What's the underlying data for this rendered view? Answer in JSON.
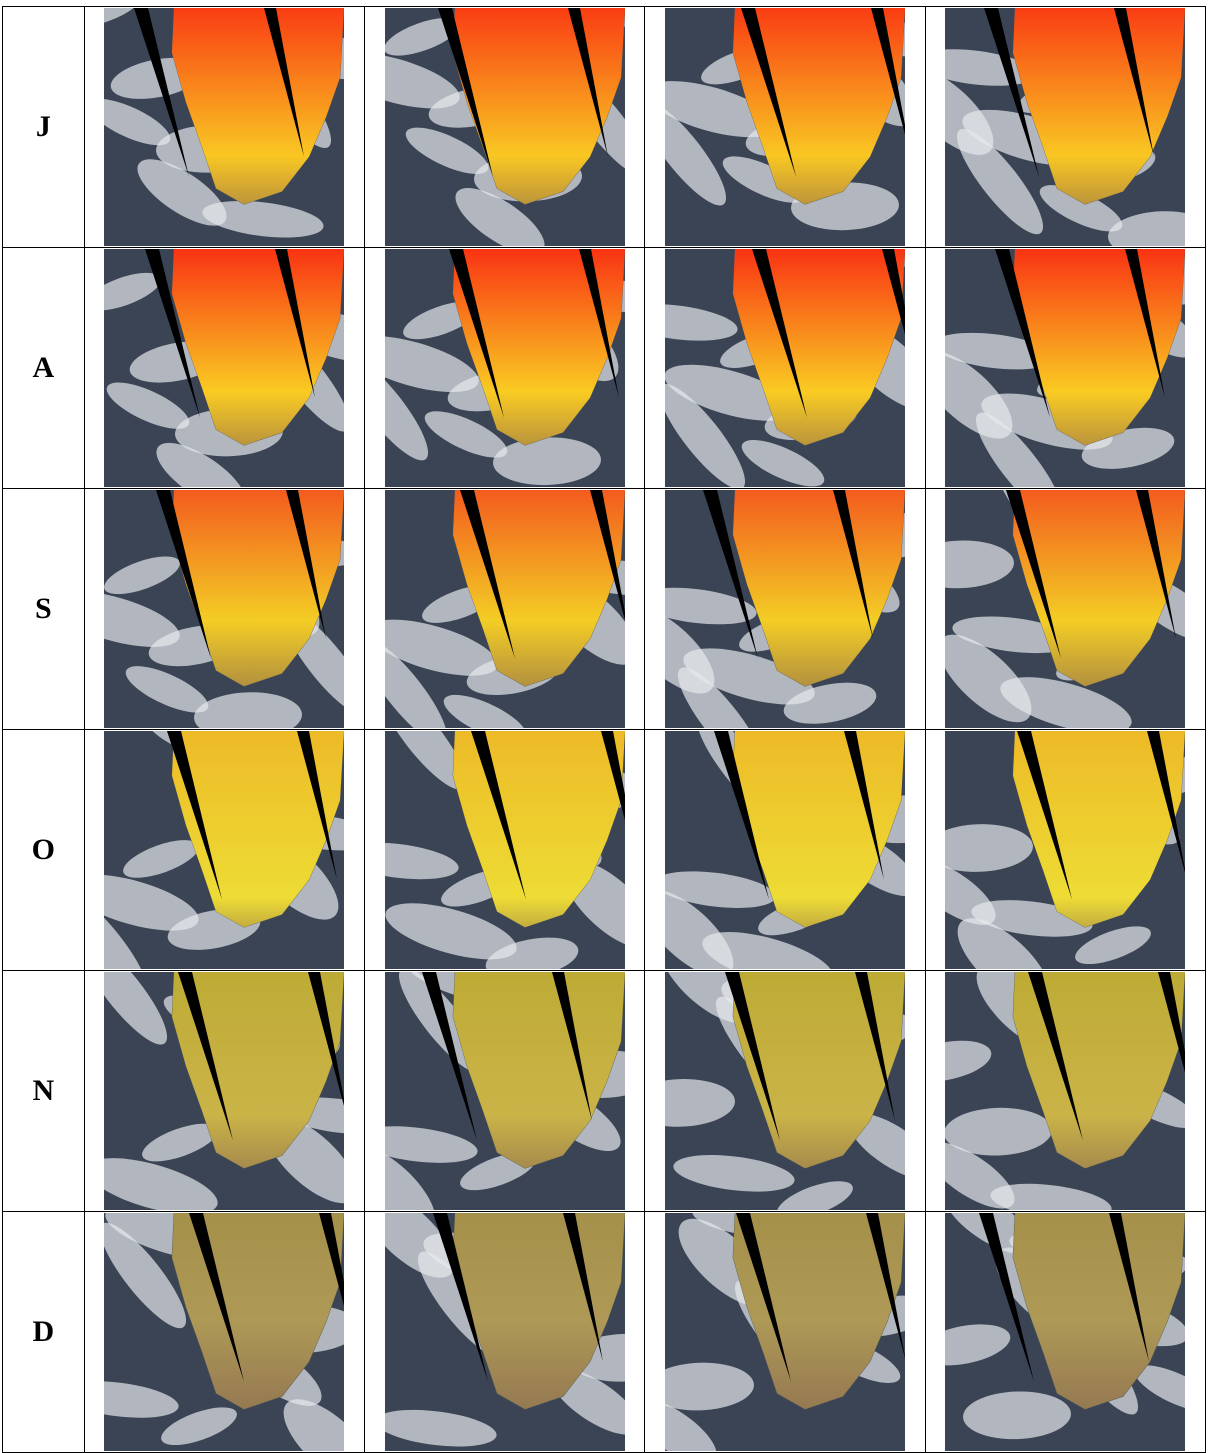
{
  "table": {
    "rows": [
      [
        "J"
      ],
      [
        "A"
      ],
      [
        "S"
      ],
      [
        "O"
      ],
      [
        "N"
      ],
      [
        "D"
      ]
    ]
  }
}
